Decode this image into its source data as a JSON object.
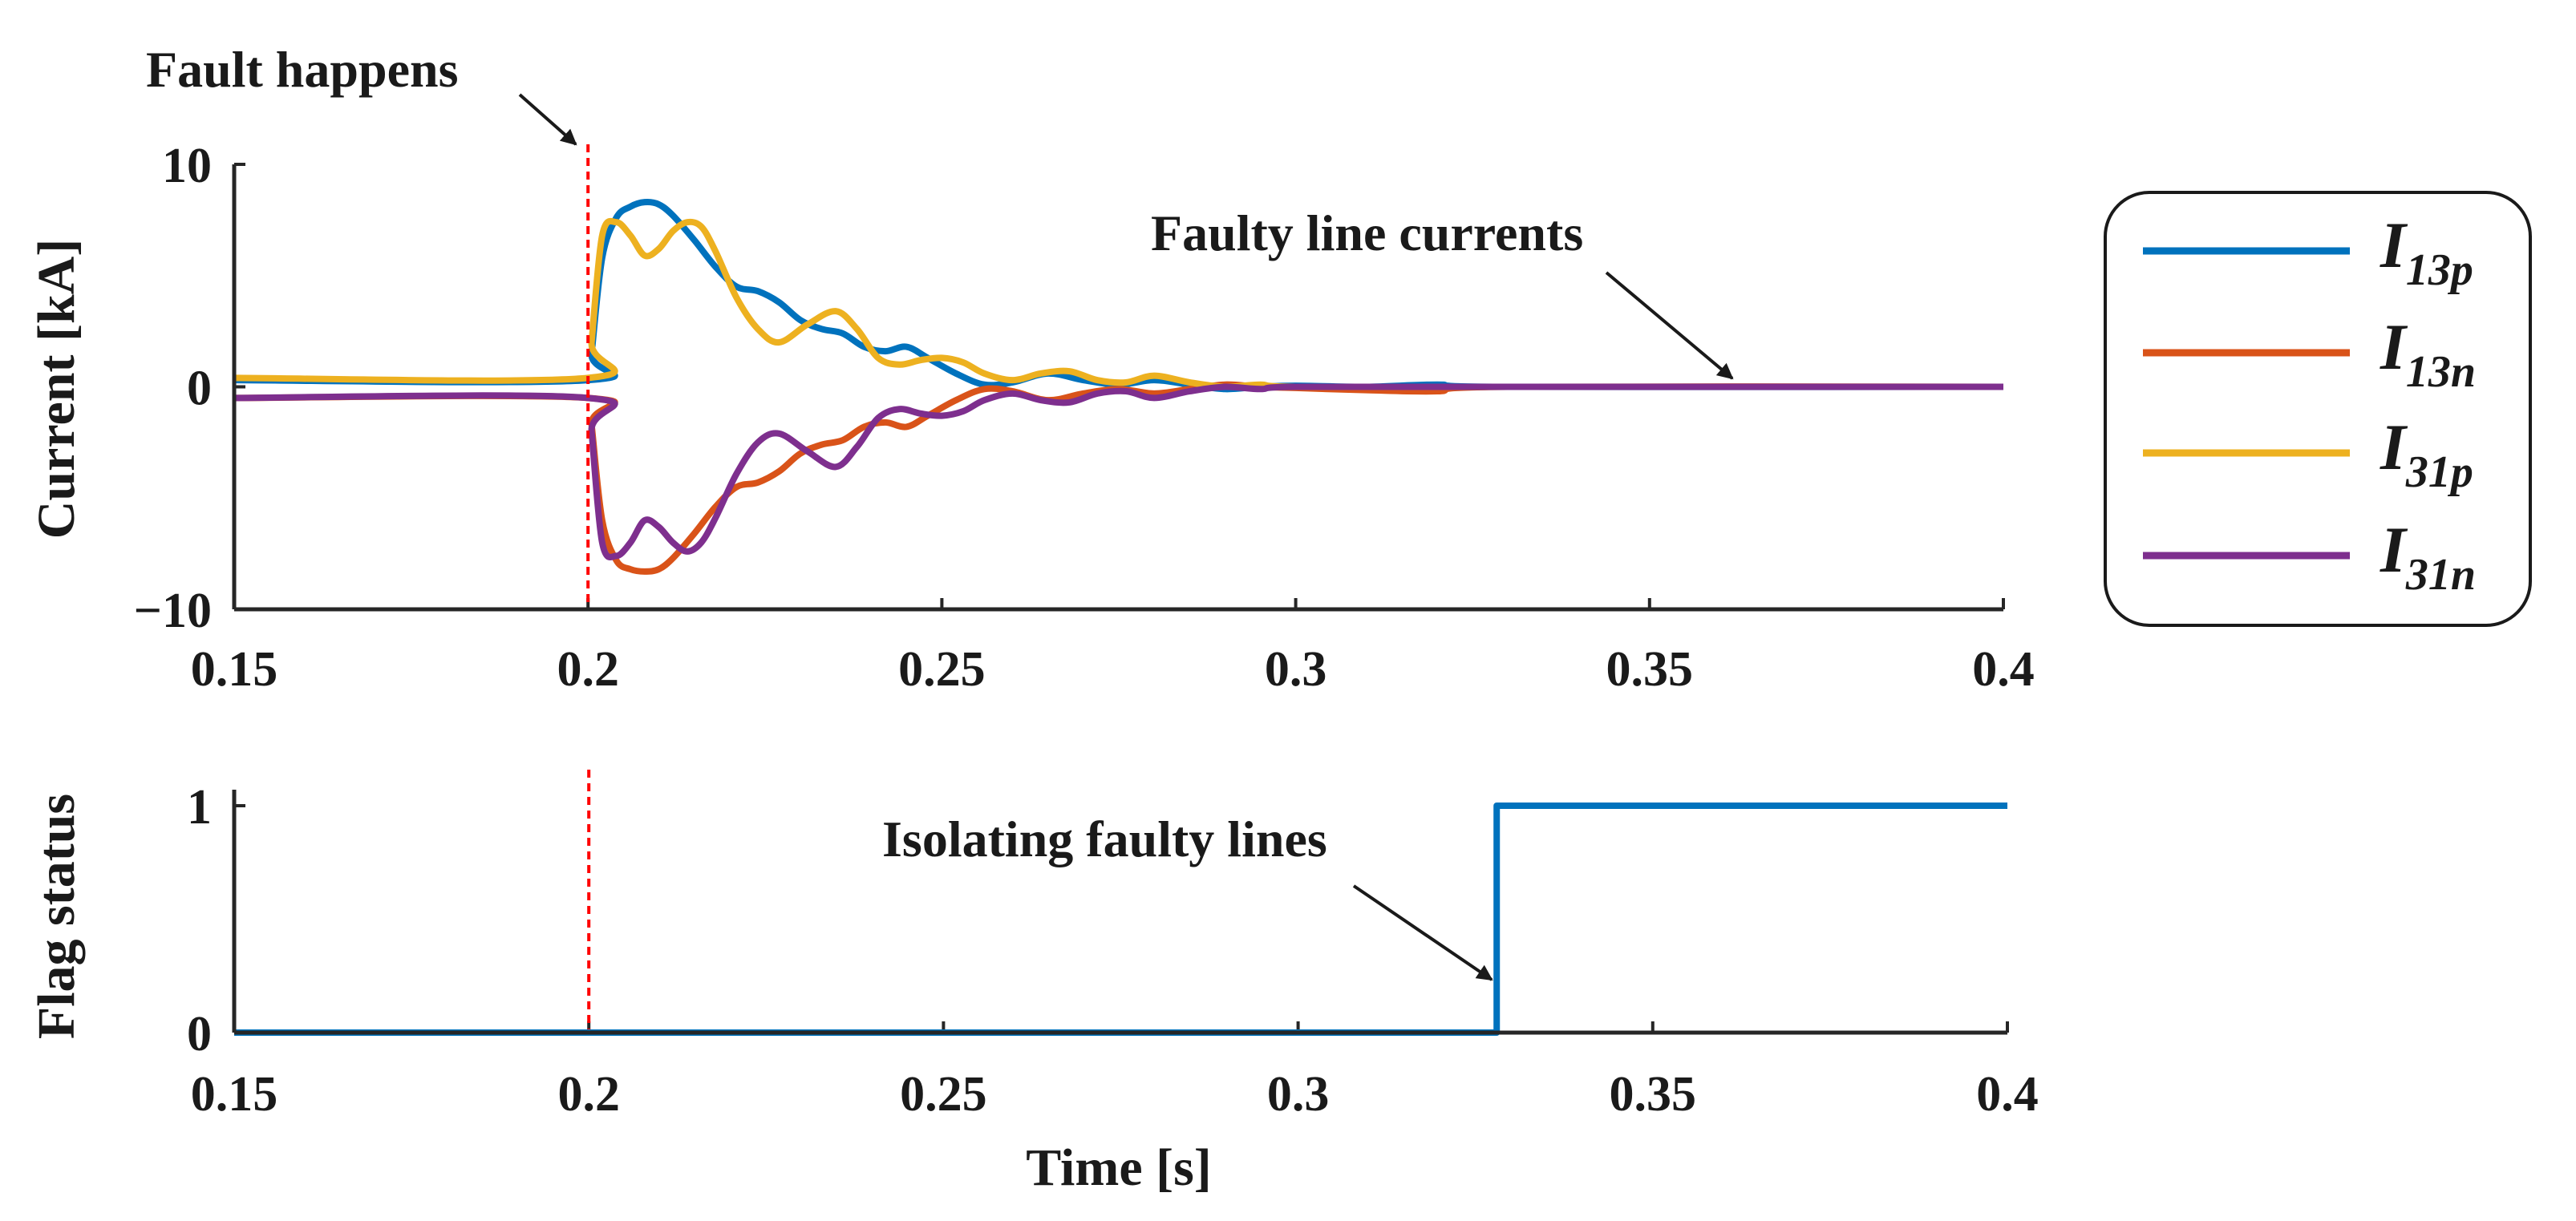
{
  "chart_data": [
    {
      "type": "line",
      "id": "currents",
      "ylabel": "Current [kA]",
      "xlabel": "",
      "xlim": [
        0.15,
        0.4
      ],
      "ylim": [
        -10,
        10
      ],
      "xticks": [
        0.15,
        0.2,
        0.25,
        0.3,
        0.35,
        0.4
      ],
      "xtick_labels": [
        "0.15",
        "0.2",
        "0.25",
        "0.3",
        "0.35",
        "0.4"
      ],
      "yticks": [
        -10,
        0,
        10
      ],
      "ytick_labels": [
        "−10",
        "0",
        "10"
      ],
      "series": [
        {
          "name": "I13p",
          "base": "I",
          "sub": "13p",
          "color": "#0072BD",
          "x": [
            0.15,
            0.2,
            0.2005,
            0.202,
            0.204,
            0.206,
            0.208,
            0.21,
            0.212,
            0.215,
            0.218,
            0.221,
            0.224,
            0.227,
            0.23,
            0.233,
            0.236,
            0.239,
            0.242,
            0.245,
            0.248,
            0.252,
            0.256,
            0.26,
            0.265,
            0.27,
            0.275,
            0.28,
            0.285,
            0.29,
            0.295,
            0.3,
            0.31,
            0.32,
            0.33,
            0.4
          ],
          "y": [
            0.3,
            0.3,
            1.5,
            5.8,
            7.6,
            8.1,
            8.3,
            8.2,
            7.7,
            6.6,
            5.4,
            4.5,
            4.3,
            3.8,
            3.0,
            2.6,
            2.4,
            1.8,
            1.6,
            1.8,
            1.3,
            0.6,
            0.1,
            0.2,
            0.6,
            0.3,
            0.1,
            0.3,
            0.1,
            -0.1,
            0.0,
            0.05,
            0.0,
            0.1,
            0.0,
            0.0
          ]
        },
        {
          "name": "I13n",
          "base": "I",
          "sub": "13n",
          "color": "#D95319",
          "x": [
            0.15,
            0.2,
            0.2005,
            0.202,
            0.204,
            0.206,
            0.208,
            0.21,
            0.212,
            0.215,
            0.218,
            0.221,
            0.224,
            0.227,
            0.23,
            0.233,
            0.236,
            0.239,
            0.242,
            0.245,
            0.248,
            0.252,
            0.256,
            0.26,
            0.265,
            0.27,
            0.275,
            0.28,
            0.285,
            0.29,
            0.295,
            0.3,
            0.31,
            0.32,
            0.33,
            0.4
          ],
          "y": [
            -0.5,
            -0.5,
            -1.7,
            -6.0,
            -7.8,
            -8.2,
            -8.3,
            -8.2,
            -7.7,
            -6.6,
            -5.4,
            -4.5,
            -4.3,
            -3.8,
            -3.0,
            -2.6,
            -2.4,
            -1.8,
            -1.6,
            -1.8,
            -1.3,
            -0.6,
            -0.1,
            -0.2,
            -0.6,
            -0.3,
            -0.1,
            -0.3,
            -0.1,
            0.1,
            0.0,
            -0.05,
            -0.15,
            -0.2,
            0.0,
            0.0
          ]
        },
        {
          "name": "I31p",
          "base": "I",
          "sub": "31p",
          "color": "#EDB120",
          "x": [
            0.15,
            0.2,
            0.2005,
            0.202,
            0.204,
            0.206,
            0.208,
            0.21,
            0.212,
            0.214,
            0.216,
            0.218,
            0.221,
            0.224,
            0.227,
            0.231,
            0.235,
            0.238,
            0.241,
            0.244,
            0.247,
            0.25,
            0.253,
            0.256,
            0.26,
            0.264,
            0.268,
            0.272,
            0.276,
            0.28,
            0.285,
            0.29,
            0.295,
            0.3,
            0.33,
            0.4
          ],
          "y": [
            0.4,
            0.4,
            2.0,
            6.8,
            7.4,
            6.8,
            5.9,
            6.2,
            7.0,
            7.4,
            7.2,
            6.1,
            4.0,
            2.6,
            2.0,
            2.8,
            3.4,
            2.6,
            1.3,
            1.0,
            1.2,
            1.3,
            1.1,
            0.6,
            0.3,
            0.6,
            0.7,
            0.3,
            0.2,
            0.5,
            0.2,
            0.0,
            0.1,
            0.0,
            0.0,
            0.0
          ]
        },
        {
          "name": "I31n",
          "base": "I",
          "sub": "31n",
          "color": "#7E2F8E",
          "x": [
            0.15,
            0.2,
            0.2005,
            0.202,
            0.204,
            0.206,
            0.208,
            0.21,
            0.212,
            0.214,
            0.216,
            0.218,
            0.221,
            0.224,
            0.227,
            0.231,
            0.235,
            0.238,
            0.241,
            0.244,
            0.247,
            0.25,
            0.253,
            0.256,
            0.26,
            0.264,
            0.268,
            0.272,
            0.276,
            0.28,
            0.285,
            0.29,
            0.295,
            0.3,
            0.33,
            0.4
          ],
          "y": [
            -0.5,
            -0.5,
            -2.0,
            -7.0,
            -7.6,
            -7.0,
            -6.0,
            -6.3,
            -7.0,
            -7.4,
            -7.0,
            -5.9,
            -3.9,
            -2.5,
            -2.1,
            -2.9,
            -3.6,
            -2.7,
            -1.4,
            -1.0,
            -1.2,
            -1.3,
            -1.1,
            -0.6,
            -0.3,
            -0.6,
            -0.7,
            -0.3,
            -0.2,
            -0.5,
            -0.2,
            0.0,
            -0.1,
            0.0,
            0.0,
            0.0
          ]
        }
      ],
      "annotations": [
        {
          "text": "Fault happens",
          "points_to": [
            0.2,
            10
          ]
        },
        {
          "text": "Faulty line currents",
          "points_to": [
            0.365,
            0
          ]
        }
      ],
      "vline": {
        "x": 0.2,
        "color": "#ff0000",
        "style": "dashed"
      },
      "legend": "right"
    },
    {
      "type": "line",
      "id": "flag",
      "ylabel": "Flag status",
      "xlabel": "Time [s]",
      "xlim": [
        0.15,
        0.4
      ],
      "ylim": [
        0,
        1.05
      ],
      "xticks": [
        0.15,
        0.2,
        0.25,
        0.3,
        0.35,
        0.4
      ],
      "xtick_labels": [
        "0.15",
        "0.2",
        "0.25",
        "0.3",
        "0.35",
        "0.4"
      ],
      "yticks": [
        0,
        1
      ],
      "ytick_labels": [
        "0",
        "1"
      ],
      "series": [
        {
          "name": "Flag",
          "color": "#0072BD",
          "x": [
            0.15,
            0.328,
            0.328,
            0.4
          ],
          "y": [
            0,
            0,
            1,
            1
          ]
        }
      ],
      "annotations": [
        {
          "text": "Isolating faulty lines",
          "points_to": [
            0.328,
            0.02
          ]
        }
      ],
      "vline": {
        "x": 0.2,
        "color": "#ff0000",
        "style": "dashed"
      }
    }
  ]
}
